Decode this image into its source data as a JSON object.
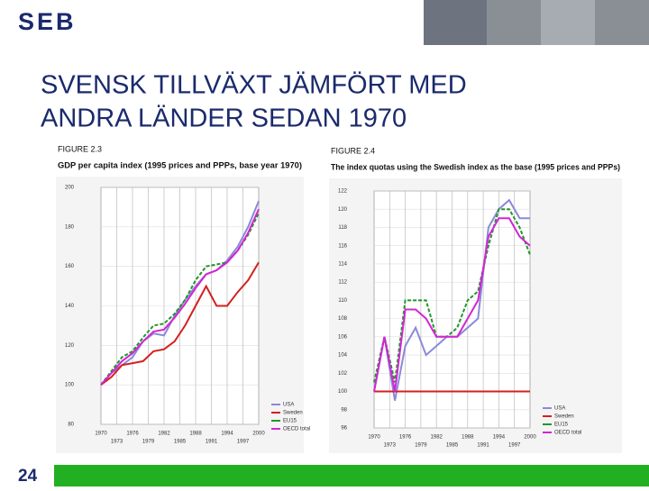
{
  "slide": {
    "logo": "SEB",
    "title_lines": [
      "SVENSK TILLVÄXT JÄMFÖRT MED",
      "ANDRA LÄNDER SEDAN 1970"
    ],
    "page_number": "24"
  },
  "chart_data": [
    {
      "type": "line",
      "title": "FIGURE 2.3",
      "subtitle": "GDP per capita index (1995 prices and PPPs, base year 1970)",
      "x": [
        1970,
        1972,
        1974,
        1976,
        1978,
        1980,
        1982,
        1984,
        1986,
        1988,
        1990,
        1992,
        1994,
        1996,
        1998,
        2000
      ],
      "series": [
        {
          "name": "USA",
          "color": "#8a8ad8",
          "values": [
            100,
            106,
            110,
            114,
            122,
            126,
            125,
            135,
            143,
            150,
            156,
            158,
            163,
            170,
            180,
            193
          ]
        },
        {
          "name": "Sweden",
          "color": "#d42020",
          "values": [
            100,
            104,
            110,
            111,
            112,
            117,
            118,
            122,
            130,
            140,
            150,
            140,
            140,
            147,
            153,
            162
          ]
        },
        {
          "name": "EU15",
          "color": "#22962a",
          "dashed": true,
          "values": [
            100,
            107,
            114,
            117,
            124,
            130,
            131,
            136,
            143,
            153,
            160,
            161,
            162,
            168,
            176,
            187
          ]
        },
        {
          "name": "OECD total",
          "color": "#d424d4",
          "values": [
            100,
            106,
            112,
            116,
            122,
            127,
            128,
            134,
            141,
            149,
            156,
            158,
            162,
            168,
            177,
            189
          ]
        }
      ],
      "xlim": [
        1970,
        2000
      ],
      "xticks": [
        1970,
        1973,
        1976,
        1979,
        1982,
        1985,
        1988,
        1991,
        1994,
        1997,
        2000
      ],
      "ylim": [
        80,
        200
      ],
      "yticks": [
        80,
        100,
        120,
        140,
        160,
        180,
        200
      ],
      "grid": true,
      "legend": "bottom-right"
    },
    {
      "type": "line",
      "title": "FIGURE 2.4",
      "subtitle": "The index quotas using the Swedish index as the base (1995 prices and PPPs)",
      "x": [
        1970,
        1972,
        1974,
        1976,
        1978,
        1980,
        1982,
        1984,
        1986,
        1988,
        1990,
        1992,
        1994,
        1996,
        1998,
        2000
      ],
      "series": [
        {
          "name": "USA",
          "color": "#8a8ad8",
          "values": [
            100,
            106,
            99,
            105,
            107,
            104,
            105,
            106,
            106,
            107,
            108,
            118,
            120,
            121,
            119,
            119
          ]
        },
        {
          "name": "Sweden",
          "color": "#d42020",
          "values": [
            100,
            100,
            100,
            100,
            100,
            100,
            100,
            100,
            100,
            100,
            100,
            100,
            100,
            100,
            100,
            100
          ]
        },
        {
          "name": "EU15",
          "color": "#22962a",
          "dashed": true,
          "values": [
            101,
            106,
            101,
            110,
            110,
            110,
            106,
            106,
            107,
            110,
            111,
            116,
            120,
            120,
            118,
            115
          ]
        },
        {
          "name": "OECD total",
          "color": "#d424d4",
          "values": [
            100,
            106,
            100,
            109,
            109,
            108,
            106,
            106,
            106,
            108,
            110,
            117,
            119,
            119,
            117,
            116
          ]
        }
      ],
      "xlim": [
        1970,
        2000
      ],
      "xticks": [
        1970,
        1973,
        1976,
        1979,
        1982,
        1985,
        1988,
        1991,
        1994,
        1997,
        2000
      ],
      "ylim": [
        96,
        122
      ],
      "yticks": [
        96,
        98,
        100,
        102,
        104,
        106,
        108,
        110,
        112,
        114,
        116,
        118,
        120,
        122
      ],
      "grid": true,
      "legend": "bottom-right"
    }
  ]
}
